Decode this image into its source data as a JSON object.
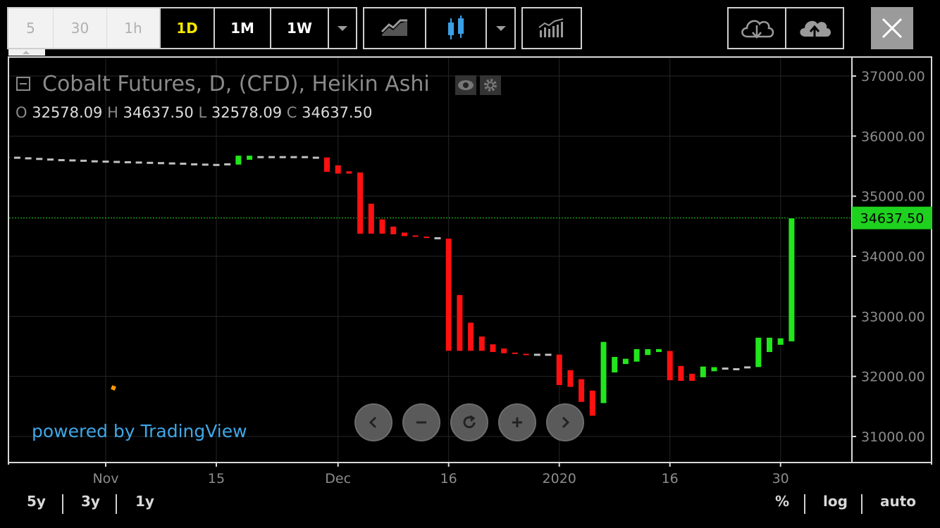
{
  "toolbar": {
    "intervals": [
      "5",
      "30",
      "1h",
      "1D",
      "1M",
      "1W"
    ],
    "selected_interval": "1D"
  },
  "chart": {
    "title": "Cobalt Futures, D, (CFD), Heikin Ashi",
    "ohlc": {
      "o_label": "O",
      "o_value": "32578.09",
      "h_label": "H",
      "h_value": "34637.50",
      "l_label": "L",
      "l_value": "32578.09",
      "c_label": "C",
      "c_value": "34637.50"
    },
    "last_price_label": "34637.50",
    "powered_by": "powered by TradingView"
  },
  "bottom": {
    "ranges": [
      "5y",
      "3y",
      "1y"
    ],
    "options": [
      "%",
      "log",
      "auto"
    ]
  },
  "colors": {
    "up": "#22e61c",
    "down": "#ff1111",
    "flat": "#c0c0c0",
    "price_line": "#1fd11f",
    "accent_selected": "#f5e700",
    "link": "#3fa8e8"
  },
  "chart_data": {
    "type": "candlestick",
    "style": "Heikin Ashi",
    "y_ticks": [
      "37000.00",
      "36000.00",
      "35000.00",
      "34000.00",
      "33000.00",
      "32000.00",
      "31000.00"
    ],
    "y_tick_values": [
      37000,
      36000,
      35000,
      34000,
      33000,
      32000,
      31000
    ],
    "ylim": [
      30560,
      37240
    ],
    "x_ticks": [
      {
        "label": "Nov",
        "index": 0
      },
      {
        "label": "15",
        "index": 10
      },
      {
        "label": "Dec",
        "index": 21
      },
      {
        "label": "16",
        "index": 31
      },
      {
        "label": "2020",
        "index": 41
      },
      {
        "label": "16",
        "index": 51
      },
      {
        "label": "30",
        "index": 61
      }
    ],
    "candles": [
      [
        -9,
        35650,
        35650
      ],
      [
        -8,
        35640,
        35640
      ],
      [
        -7,
        35630,
        35630
      ],
      [
        -6,
        35620,
        35620
      ],
      [
        -5,
        35610,
        35610
      ],
      [
        -4,
        35600,
        35600
      ],
      [
        -3,
        35595,
        35595
      ],
      [
        -2,
        35590,
        35590
      ],
      [
        -1,
        35580,
        35580
      ],
      [
        0,
        35575,
        35575
      ],
      [
        1,
        35570,
        35570
      ],
      [
        2,
        35565,
        35565
      ],
      [
        3,
        35560,
        35560
      ],
      [
        4,
        35555,
        35555
      ],
      [
        5,
        35550,
        35550
      ],
      [
        6,
        35545,
        35545
      ],
      [
        7,
        35540,
        35540
      ],
      [
        8,
        35530,
        35530
      ],
      [
        9,
        35525,
        35525
      ],
      [
        10,
        35520,
        35520
      ],
      [
        11,
        35530,
        35530
      ],
      [
        12,
        35520,
        35680
      ],
      [
        13,
        35600,
        35680
      ],
      [
        14,
        35650,
        35650
      ],
      [
        15,
        35650,
        35650
      ],
      [
        16,
        35650,
        35650
      ],
      [
        17,
        35650,
        35650
      ],
      [
        18,
        35650,
        35650
      ],
      [
        19,
        35640,
        35640
      ],
      [
        20,
        35650,
        35400
      ],
      [
        21,
        35520,
        35370
      ],
      [
        22,
        35420,
        35370
      ],
      [
        23,
        35400,
        34370
      ],
      [
        24,
        34880,
        34370
      ],
      [
        25,
        34620,
        34370
      ],
      [
        26,
        34500,
        34360
      ],
      [
        27,
        34400,
        34330
      ],
      [
        28,
        34350,
        34320
      ],
      [
        29,
        34330,
        34300
      ],
      [
        30,
        34300,
        34300
      ],
      [
        31,
        34300,
        32420
      ],
      [
        32,
        33360,
        32420
      ],
      [
        33,
        32900,
        32420
      ],
      [
        34,
        32670,
        32420
      ],
      [
        35,
        32540,
        32400
      ],
      [
        36,
        32470,
        32380
      ],
      [
        37,
        32400,
        32370
      ],
      [
        38,
        32380,
        32350
      ],
      [
        39,
        32360,
        32360
      ],
      [
        40,
        32360,
        32360
      ],
      [
        41,
        32370,
        31850
      ],
      [
        42,
        32110,
        31820
      ],
      [
        43,
        31960,
        31570
      ],
      [
        44,
        31770,
        31340
      ],
      [
        45,
        31550,
        32580
      ],
      [
        46,
        32060,
        32330
      ],
      [
        47,
        32200,
        32300
      ],
      [
        48,
        32240,
        32460
      ],
      [
        49,
        32350,
        32460
      ],
      [
        50,
        32400,
        32460
      ],
      [
        51,
        32430,
        31930
      ],
      [
        52,
        32180,
        31920
      ],
      [
        53,
        32050,
        31920
      ],
      [
        54,
        31980,
        32170
      ],
      [
        55,
        32080,
        32160
      ],
      [
        56,
        32130,
        32130
      ],
      [
        57,
        32120,
        32120
      ],
      [
        58,
        32150,
        32150
      ],
      [
        59,
        32150,
        32650
      ],
      [
        60,
        32400,
        32650
      ],
      [
        61,
        32520,
        32640
      ],
      [
        62,
        32578.09,
        34637.5
      ]
    ]
  }
}
